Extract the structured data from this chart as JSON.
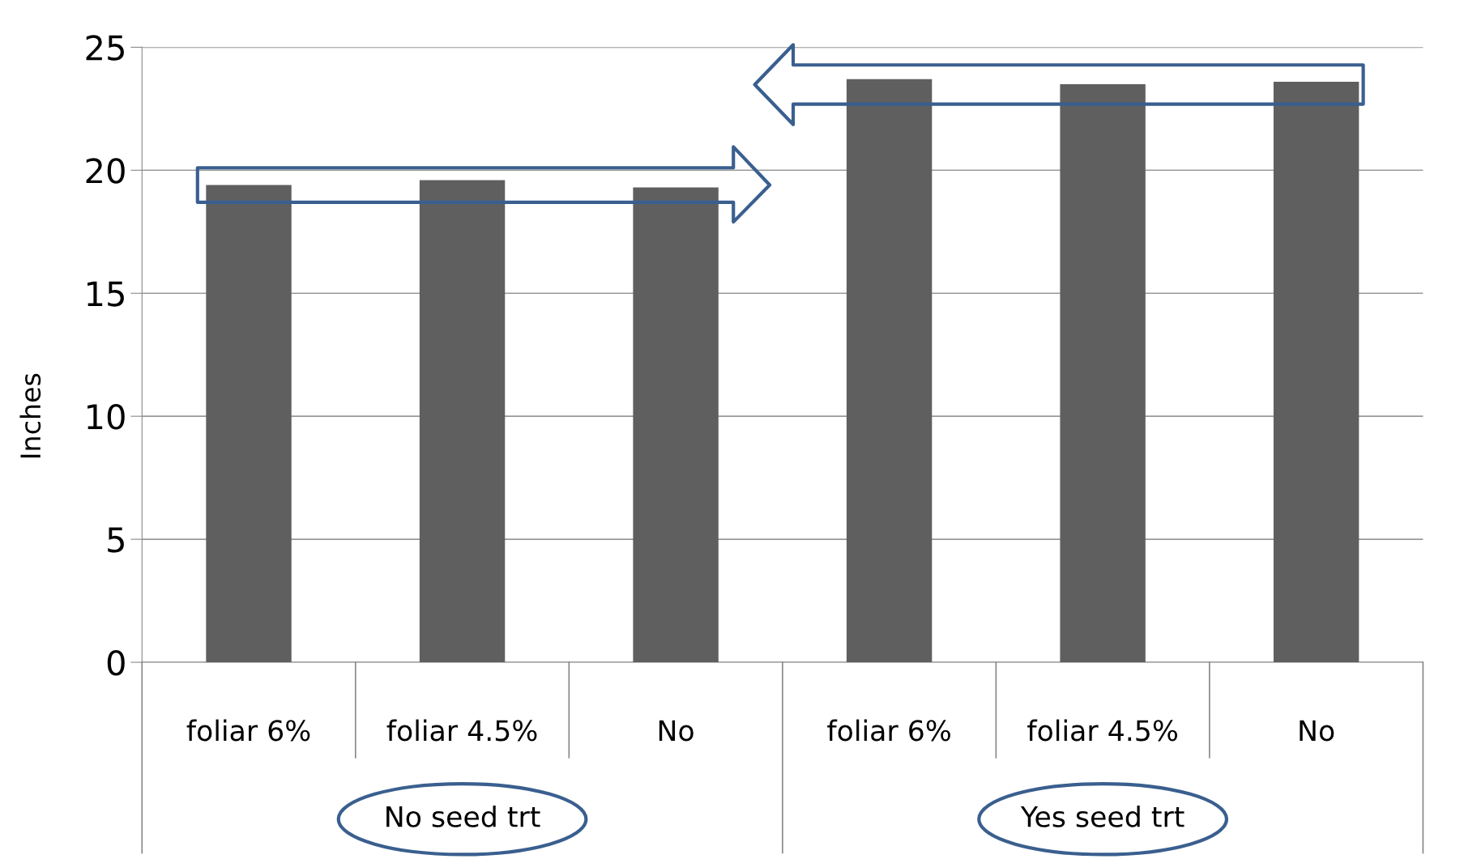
{
  "chart_data": {
    "type": "bar",
    "ylabel": "Inches",
    "categories": [
      "foliar 6%",
      "foliar 4.5%",
      "No",
      "foliar 6%",
      "foliar 4.5%",
      "No"
    ],
    "values": [
      19.4,
      19.6,
      19.3,
      23.7,
      23.5,
      23.6
    ],
    "color": "#5f5f5f",
    "ylim": [
      0,
      25
    ],
    "yticks": [
      0,
      5,
      10,
      15,
      20,
      25
    ],
    "grid": "y",
    "annotations": [
      "No seed trt",
      "Yes seed trt"
    ]
  }
}
